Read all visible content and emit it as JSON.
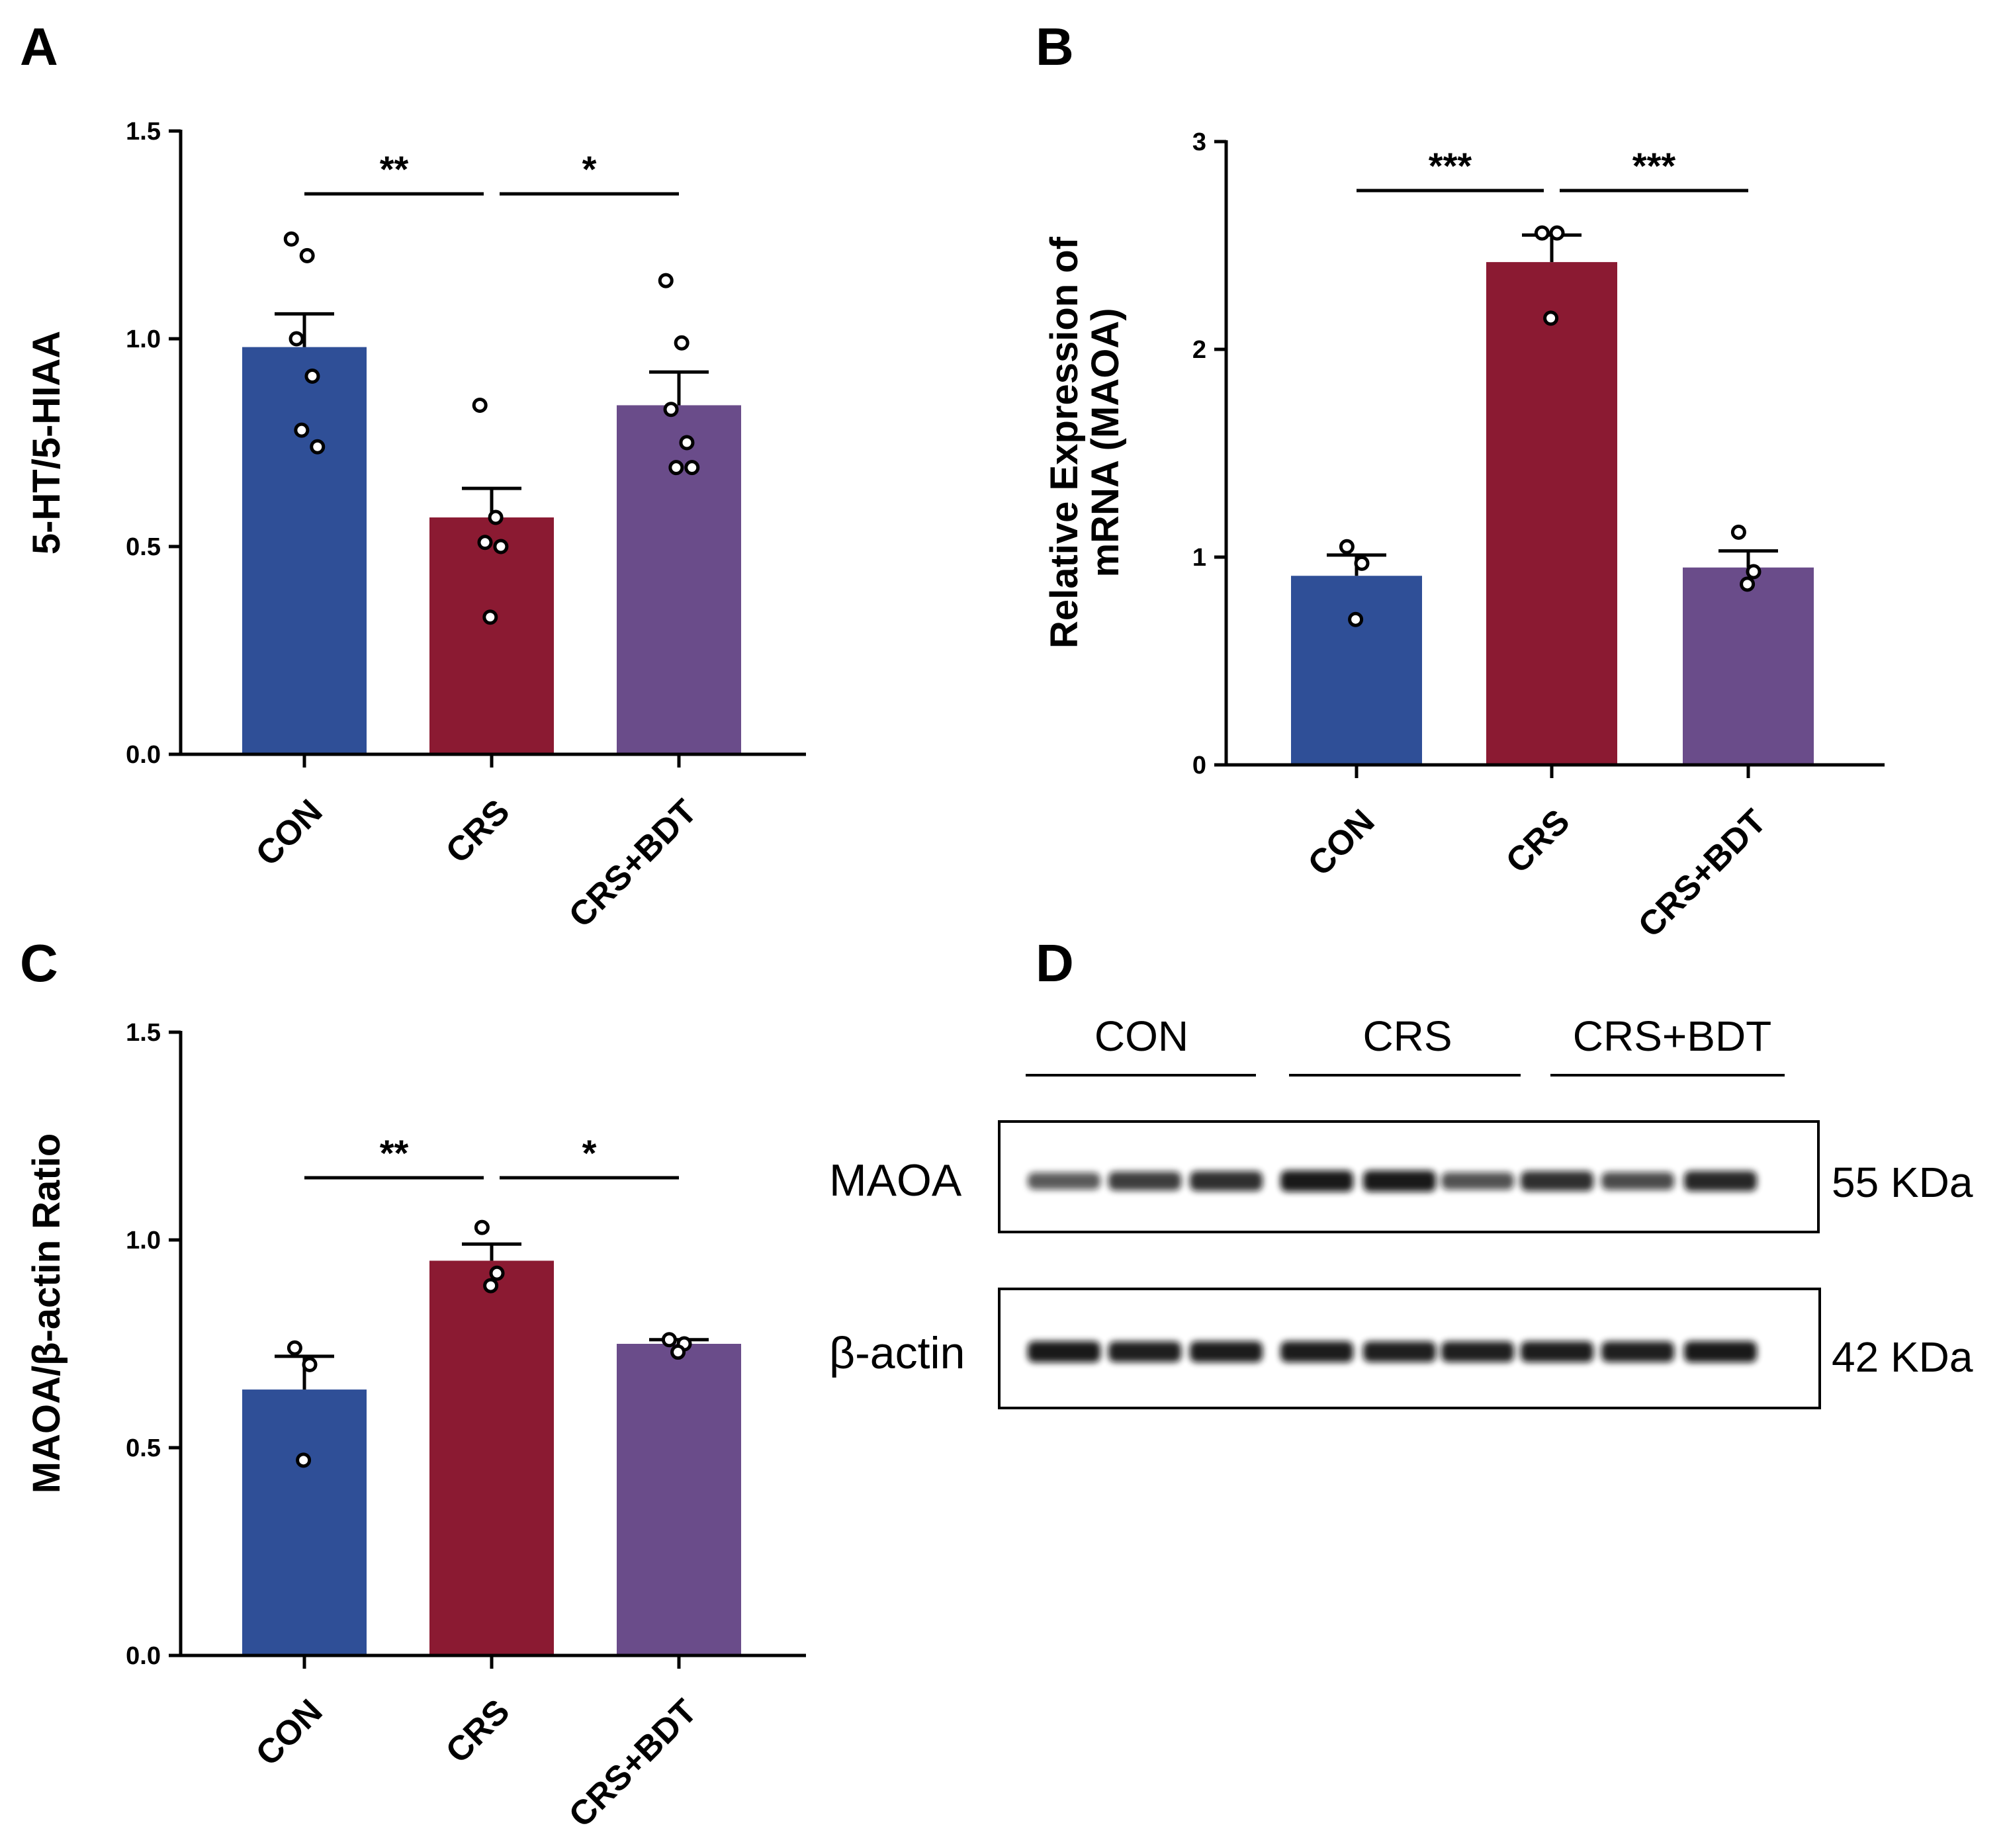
{
  "colors": {
    "con": "#2F4F97",
    "crs": "#8B1A32",
    "bdt": "#6A4C8A",
    "axis": "#000000",
    "point_fill": "#ffffff"
  },
  "chart_data": [
    {
      "panel": "A",
      "type": "bar",
      "title": "",
      "ylabel": "5-HT/5-HIAA",
      "xlabel": "",
      "ylim": [
        0,
        1.5
      ],
      "yticks": [
        "0.0",
        "0.5",
        "1.0",
        "1.5"
      ],
      "ytick_values": [
        0,
        0.5,
        1.0,
        1.5
      ],
      "categories": [
        "CON",
        "CRS",
        "CRS+BDT"
      ],
      "values": [
        0.98,
        0.57,
        0.84
      ],
      "errors": [
        0.08,
        0.07,
        0.08
      ],
      "points": [
        [
          1.24,
          1.2,
          1.0,
          0.91,
          0.78,
          0.74
        ],
        [
          0.84,
          0.57,
          0.51,
          0.5,
          0.33
        ],
        [
          1.14,
          0.99,
          0.83,
          0.75,
          0.69,
          0.69
        ]
      ],
      "significance": [
        {
          "from": 0,
          "to": 1,
          "label": "**"
        },
        {
          "from": 1,
          "to": 2,
          "label": "*"
        }
      ]
    },
    {
      "panel": "B",
      "type": "bar",
      "title": "",
      "ylabel": [
        "Relative Expression of",
        "mRNA (MAOA)"
      ],
      "xlabel": "",
      "ylim": [
        0,
        3
      ],
      "yticks": [
        "0",
        "1",
        "2",
        "3"
      ],
      "ytick_values": [
        0,
        1,
        2,
        3
      ],
      "categories": [
        "CON",
        "CRS",
        "CRS+BDT"
      ],
      "values": [
        0.91,
        2.42,
        0.95
      ],
      "errors": [
        0.1,
        0.13,
        0.08
      ],
      "points": [
        [
          1.05,
          0.97,
          0.7
        ],
        [
          2.56,
          2.56,
          2.15
        ],
        [
          1.12,
          0.93,
          0.87
        ]
      ],
      "significance": [
        {
          "from": 0,
          "to": 1,
          "label": "***"
        },
        {
          "from": 1,
          "to": 2,
          "label": "***"
        }
      ]
    },
    {
      "panel": "C",
      "type": "bar",
      "title": "",
      "ylabel": "MAOA/β-actin Ratio",
      "xlabel": "",
      "ylim": [
        0,
        1.5
      ],
      "yticks": [
        "0.0",
        "0.5",
        "1.0",
        "1.5"
      ],
      "ytick_values": [
        0,
        0.5,
        1.0,
        1.5
      ],
      "categories": [
        "CON",
        "CRS",
        "CRS+BDT"
      ],
      "values": [
        0.64,
        0.95,
        0.75
      ],
      "errors": [
        0.08,
        0.04,
        0.01
      ],
      "points": [
        [
          0.74,
          0.7,
          0.47
        ],
        [
          1.03,
          0.92,
          0.89
        ],
        [
          0.76,
          0.75,
          0.73
        ]
      ],
      "significance": [
        {
          "from": 0,
          "to": 1,
          "label": "**"
        },
        {
          "from": 1,
          "to": 2,
          "label": "*"
        }
      ]
    }
  ],
  "panel_labels": {
    "a": "A",
    "b": "B",
    "c": "C",
    "d": "D"
  },
  "blot": {
    "groups": [
      "CON",
      "CRS",
      "CRS+BDT"
    ],
    "rows": [
      {
        "label": "MAOA",
        "size": "55 KDa",
        "intensities": [
          0.55,
          0.75,
          0.85,
          1.0,
          1.0,
          0.6,
          0.85,
          0.65,
          0.9
        ]
      },
      {
        "label": "β-actin",
        "size": "42 KDa",
        "intensities": [
          1.0,
          0.95,
          0.98,
          0.98,
          0.95,
          0.95,
          0.97,
          0.95,
          1.0
        ]
      }
    ]
  }
}
